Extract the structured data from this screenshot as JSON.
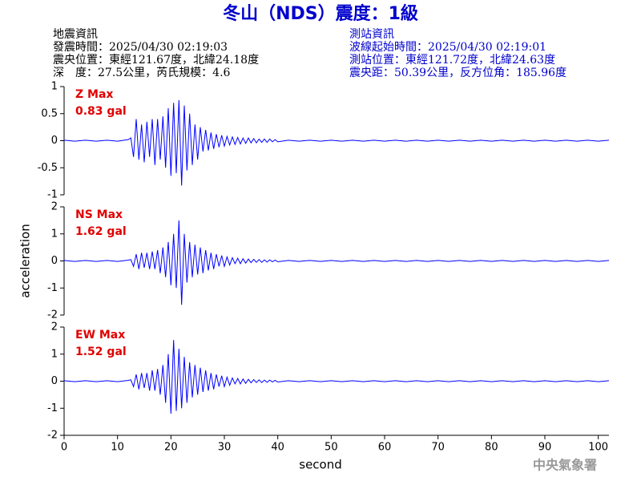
{
  "header": {
    "title": "冬山（NDS）震度：1級",
    "left": [
      "地震資訊",
      "發震時間：2025/04/30 02:19:03",
      "震央位置：東經121.67度，北緯24.18度",
      "深　度：27.5公里，芮氏規模：4.6"
    ],
    "right": [
      "測站資訊",
      "波線起始時間：2025/04/30 02:19:01",
      "測站位置：東經121.72度，北緯24.63度",
      "震央距：50.39公里，反方位角：185.96度"
    ]
  },
  "footer": "中央氣象署",
  "chart_data": [
    {
      "type": "line",
      "annotations": [
        "Z Max",
        "0.83 gal"
      ],
      "color": "#0000ff",
      "x": [
        0,
        2,
        4,
        6,
        8,
        10,
        12,
        12.5,
        13,
        13.5,
        14,
        14.5,
        15,
        15.5,
        16,
        16.5,
        17,
        17.5,
        18,
        18.5,
        19,
        19.5,
        20,
        20.5,
        21,
        21.5,
        22,
        22.5,
        23,
        23.5,
        24,
        24.5,
        25,
        25.5,
        26,
        26.5,
        27,
        27.5,
        28,
        28.5,
        29,
        29.5,
        30,
        30.5,
        31,
        31.5,
        32,
        32.5,
        33,
        33.5,
        34,
        34.5,
        35,
        35.5,
        36,
        36.5,
        37,
        37.5,
        38,
        38.5,
        39,
        39.5,
        40,
        42,
        44,
        46,
        48,
        50,
        52,
        54,
        56,
        58,
        60,
        62,
        64,
        66,
        68,
        70,
        72,
        74,
        76,
        78,
        80,
        82,
        84,
        86,
        88,
        90,
        92,
        94,
        96,
        98,
        100,
        102
      ],
      "values": [
        0.01,
        -0.01,
        0.01,
        -0.01,
        0.01,
        -0.01,
        0.02,
        0.05,
        -0.3,
        0.4,
        -0.35,
        0.3,
        -0.4,
        0.35,
        -0.3,
        0.4,
        -0.45,
        0.4,
        -0.35,
        0.45,
        -0.5,
        0.6,
        -0.65,
        0.7,
        -0.6,
        0.75,
        -0.83,
        0.65,
        -0.55,
        0.5,
        -0.45,
        0.3,
        -0.35,
        0.25,
        -0.2,
        0.2,
        -0.18,
        0.15,
        -0.15,
        0.12,
        -0.12,
        0.1,
        -0.1,
        0.08,
        -0.08,
        0.07,
        -0.07,
        0.06,
        -0.06,
        0.05,
        -0.05,
        0.05,
        -0.04,
        0.04,
        -0.04,
        0.03,
        -0.03,
        0.03,
        -0.03,
        0.03,
        -0.02,
        0.02,
        -0.02,
        0.01,
        -0.01,
        0.01,
        -0.01,
        0.01,
        -0.01,
        0.01,
        -0.01,
        0.01,
        -0.01,
        0.01,
        -0.01,
        0.01,
        -0.01,
        0.01,
        -0.01,
        0.01,
        -0.01,
        0.01,
        -0.01,
        0.01,
        -0.01,
        0.01,
        -0.01,
        0.01,
        -0.01,
        0.01,
        -0.01,
        0.01,
        -0.01,
        0.01
      ],
      "xlim": [
        0,
        102
      ],
      "ylim": [
        -1,
        1
      ],
      "yticks": [
        -1,
        -0.5,
        0,
        0.5,
        1
      ]
    },
    {
      "type": "line",
      "annotations": [
        "NS Max",
        "1.62 gal"
      ],
      "color": "#0000ff",
      "ylabel": "acceleration",
      "x": [
        0,
        2,
        4,
        6,
        8,
        10,
        12,
        12.5,
        13,
        13.5,
        14,
        14.5,
        15,
        15.5,
        16,
        16.5,
        17,
        17.5,
        18,
        18.5,
        19,
        19.5,
        20,
        20.5,
        21,
        21.5,
        22,
        22.5,
        23,
        23.5,
        24,
        24.5,
        25,
        25.5,
        26,
        26.5,
        27,
        27.5,
        28,
        28.5,
        29,
        29.5,
        30,
        30.5,
        31,
        31.5,
        32,
        32.5,
        33,
        33.5,
        34,
        34.5,
        35,
        35.5,
        36,
        36.5,
        37,
        37.5,
        38,
        38.5,
        39,
        39.5,
        40,
        42,
        44,
        46,
        48,
        50,
        52,
        54,
        56,
        58,
        60,
        62,
        64,
        66,
        68,
        70,
        72,
        74,
        76,
        78,
        80,
        82,
        84,
        86,
        88,
        90,
        92,
        94,
        96,
        98,
        100,
        102
      ],
      "values": [
        0.02,
        -0.02,
        0.02,
        -0.02,
        0.02,
        -0.02,
        0.03,
        0.05,
        -0.2,
        0.25,
        -0.3,
        0.3,
        -0.25,
        0.3,
        -0.3,
        0.35,
        -0.3,
        0.4,
        -0.45,
        0.5,
        -0.6,
        0.7,
        -0.9,
        1.0,
        -1.0,
        1.5,
        -1.62,
        1.0,
        -0.8,
        0.7,
        -0.6,
        0.6,
        -0.5,
        0.5,
        -0.45,
        0.4,
        -0.35,
        0.3,
        -0.3,
        0.25,
        -0.2,
        0.2,
        -0.2,
        0.15,
        -0.15,
        0.12,
        -0.1,
        0.1,
        -0.1,
        0.08,
        -0.08,
        0.07,
        -0.06,
        0.06,
        -0.05,
        0.05,
        -0.05,
        0.04,
        -0.04,
        0.04,
        -0.03,
        0.03,
        -0.03,
        0.02,
        -0.02,
        0.02,
        -0.02,
        0.02,
        -0.02,
        0.02,
        -0.02,
        0.02,
        -0.02,
        0.02,
        -0.02,
        0.02,
        -0.02,
        0.02,
        -0.02,
        0.02,
        -0.02,
        0.02,
        -0.02,
        0.02,
        -0.02,
        0.02,
        -0.02,
        0.02,
        -0.02,
        0.02,
        -0.02,
        0.02,
        -0.02,
        0.02
      ],
      "xlim": [
        0,
        102
      ],
      "ylim": [
        -2,
        2
      ],
      "yticks": [
        -2,
        -1,
        0,
        1,
        2
      ]
    },
    {
      "type": "line",
      "annotations": [
        "EW Max",
        "1.52 gal"
      ],
      "color": "#0000ff",
      "xlabel": "second",
      "x": [
        0,
        2,
        4,
        6,
        8,
        10,
        12,
        12.5,
        13,
        13.5,
        14,
        14.5,
        15,
        15.5,
        16,
        16.5,
        17,
        17.5,
        18,
        18.5,
        19,
        19.5,
        20,
        20.5,
        21,
        21.5,
        22,
        22.5,
        23,
        23.5,
        24,
        24.5,
        25,
        25.5,
        26,
        26.5,
        27,
        27.5,
        28,
        28.5,
        29,
        29.5,
        30,
        30.5,
        31,
        31.5,
        32,
        32.5,
        33,
        33.5,
        34,
        34.5,
        35,
        35.5,
        36,
        36.5,
        37,
        37.5,
        38,
        38.5,
        39,
        39.5,
        40,
        42,
        44,
        46,
        48,
        50,
        52,
        54,
        56,
        58,
        60,
        62,
        64,
        66,
        68,
        70,
        72,
        74,
        76,
        78,
        80,
        82,
        84,
        86,
        88,
        90,
        92,
        94,
        96,
        98,
        100,
        102
      ],
      "values": [
        0.02,
        -0.02,
        0.02,
        -0.02,
        0.02,
        -0.02,
        0.03,
        0.05,
        -0.2,
        0.25,
        -0.3,
        0.3,
        -0.25,
        0.3,
        -0.35,
        0.4,
        -0.35,
        0.45,
        -0.5,
        0.6,
        -0.8,
        1.0,
        -1.2,
        1.52,
        -1.1,
        1.2,
        -1.0,
        0.9,
        -0.8,
        0.7,
        -0.6,
        0.6,
        -0.5,
        0.5,
        -0.4,
        0.4,
        -0.35,
        0.3,
        -0.3,
        0.25,
        -0.2,
        0.2,
        -0.2,
        0.15,
        -0.15,
        0.12,
        -0.1,
        0.1,
        -0.1,
        0.08,
        -0.08,
        0.07,
        -0.06,
        0.06,
        -0.05,
        0.05,
        -0.05,
        0.04,
        -0.04,
        0.04,
        -0.03,
        0.03,
        -0.03,
        0.02,
        -0.02,
        0.02,
        -0.02,
        0.02,
        -0.02,
        0.02,
        -0.02,
        0.02,
        -0.02,
        0.02,
        -0.02,
        0.02,
        -0.02,
        0.02,
        -0.02,
        0.02,
        -0.02,
        0.02,
        -0.02,
        0.02,
        -0.02,
        0.02,
        -0.02,
        0.02,
        -0.02,
        0.02,
        -0.02,
        0.02,
        -0.02,
        0.02
      ],
      "xlim": [
        0,
        102
      ],
      "ylim": [
        -2,
        2
      ],
      "yticks": [
        -2,
        -1,
        0,
        1,
        2
      ],
      "xticks": [
        0,
        10,
        20,
        30,
        40,
        50,
        60,
        70,
        80,
        90,
        100
      ]
    }
  ]
}
